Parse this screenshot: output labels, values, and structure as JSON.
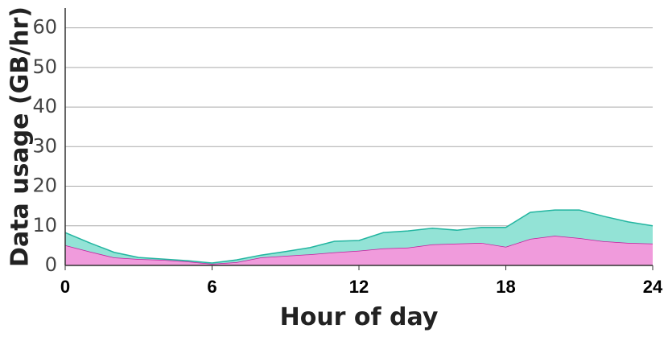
{
  "chart_data": {
    "type": "stacked-area",
    "xlabel": "Hour of day",
    "ylabel": "Data usage (GB/hr)",
    "x": [
      0,
      1,
      2,
      3,
      4,
      5,
      6,
      7,
      8,
      9,
      10,
      11,
      12,
      13,
      14,
      15,
      16,
      17,
      18,
      19,
      20,
      21,
      22,
      23,
      24
    ],
    "series": [
      {
        "color": "#f09bdc",
        "line_color": "#c21e9c",
        "values": [
          5.1,
          3.5,
          2.0,
          1.6,
          1.4,
          1.0,
          0.4,
          0.8,
          2.0,
          2.4,
          2.8,
          3.3,
          3.7,
          4.3,
          4.5,
          5.3,
          5.5,
          5.7,
          4.7,
          6.7,
          7.5,
          6.9,
          6.1,
          5.7,
          5.5
        ]
      },
      {
        "color": "#93e3d6",
        "line_color": "#22b5a0",
        "values": [
          3.2,
          2.2,
          1.3,
          0.4,
          0.2,
          0.2,
          0.2,
          0.6,
          0.6,
          1.1,
          1.7,
          2.8,
          2.6,
          4.0,
          4.2,
          4.1,
          3.4,
          3.9,
          4.9,
          6.7,
          6.5,
          7.1,
          6.3,
          5.3,
          4.5
        ]
      }
    ],
    "xlim": [
      0,
      24
    ],
    "xticks": [
      0,
      6,
      12,
      18,
      24
    ],
    "ylim": [
      0,
      65
    ],
    "yticks": [
      0,
      10,
      20,
      30,
      40,
      50,
      60
    ],
    "grid": true
  }
}
